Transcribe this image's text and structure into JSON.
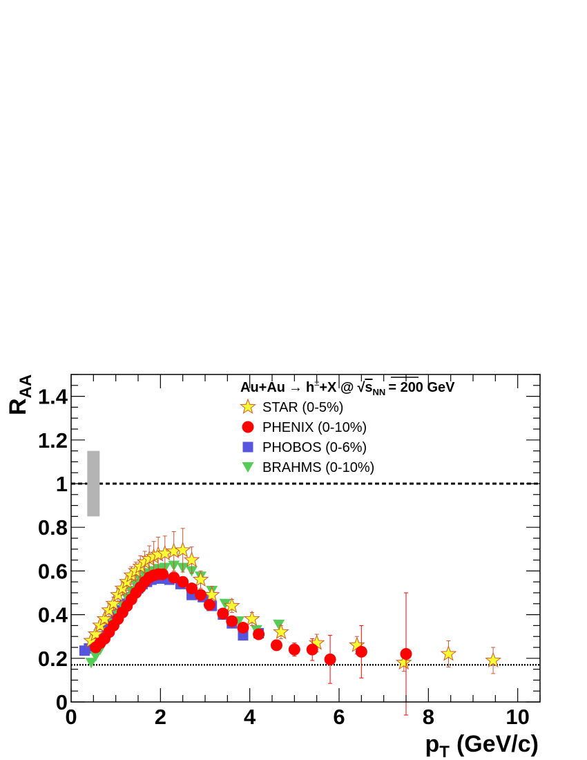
{
  "chart_data": {
    "type": "scatter",
    "title": "Au+Au",
    "title_arrow": "→",
    "title_particle": "h",
    "title_charge": "±",
    "title_rest": "+X  @",
    "title_sqrt_s": "s",
    "title_sqrt_sub": "NN",
    "title_energy": "= 200 GeV",
    "xlabel": "p",
    "xlabel_sub": "T",
    "xlabel_unit": "(GeV/c)",
    "ylabel": "R",
    "ylabel_sub": "AA",
    "xlim": [
      0,
      10.5
    ],
    "ylim": [
      0,
      1.5
    ],
    "xticks": [
      "0",
      "2",
      "4",
      "6",
      "8",
      "10"
    ],
    "yticks": [
      "0",
      "0.2",
      "0.4",
      "0.6",
      "0.8",
      "1",
      "1.2",
      "1.4"
    ],
    "xtick_values": [
      0,
      2,
      4,
      6,
      8,
      10
    ],
    "ytick_values": [
      0,
      0.2,
      0.4,
      0.6,
      0.8,
      1.0,
      1.2,
      1.4
    ],
    "grid": false,
    "legend_position": "top-right",
    "reference_lines": [
      {
        "y": 1.0,
        "style": "dashed"
      },
      {
        "y": 0.17,
        "style": "dotted"
      }
    ],
    "normalization_band": {
      "x": 0.5,
      "y_low": 0.85,
      "y_high": 1.15,
      "color": "#b4b4b4"
    },
    "series": [
      {
        "name": "STAR (0-5%)",
        "marker": "star",
        "color": "#ffff33",
        "stroke": "#cc5533",
        "points": [
          {
            "x": 0.45,
            "y": 0.28,
            "e": 0.02
          },
          {
            "x": 0.55,
            "y": 0.31,
            "e": 0.02
          },
          {
            "x": 0.65,
            "y": 0.35,
            "e": 0.02
          },
          {
            "x": 0.75,
            "y": 0.38,
            "e": 0.02
          },
          {
            "x": 0.85,
            "y": 0.42,
            "e": 0.03
          },
          {
            "x": 0.95,
            "y": 0.45,
            "e": 0.03
          },
          {
            "x": 1.05,
            "y": 0.49,
            "e": 0.03
          },
          {
            "x": 1.15,
            "y": 0.52,
            "e": 0.03
          },
          {
            "x": 1.25,
            "y": 0.55,
            "e": 0.04
          },
          {
            "x": 1.35,
            "y": 0.58,
            "e": 0.04
          },
          {
            "x": 1.45,
            "y": 0.6,
            "e": 0.04
          },
          {
            "x": 1.55,
            "y": 0.62,
            "e": 0.05
          },
          {
            "x": 1.65,
            "y": 0.64,
            "e": 0.05
          },
          {
            "x": 1.75,
            "y": 0.655,
            "e": 0.06
          },
          {
            "x": 1.85,
            "y": 0.665,
            "e": 0.07
          },
          {
            "x": 1.95,
            "y": 0.675,
            "e": 0.08
          },
          {
            "x": 2.1,
            "y": 0.68,
            "e": 0.08
          },
          {
            "x": 2.3,
            "y": 0.69,
            "e": 0.09
          },
          {
            "x": 2.5,
            "y": 0.695,
            "e": 0.1
          },
          {
            "x": 2.7,
            "y": 0.65,
            "e": 0.06
          },
          {
            "x": 2.9,
            "y": 0.56,
            "e": 0.04
          },
          {
            "x": 3.15,
            "y": 0.49,
            "e": 0.04
          },
          {
            "x": 3.6,
            "y": 0.44,
            "e": 0.03
          },
          {
            "x": 4.05,
            "y": 0.38,
            "e": 0.03
          },
          {
            "x": 4.7,
            "y": 0.32,
            "e": 0.03
          },
          {
            "x": 5.5,
            "y": 0.27,
            "e": 0.04
          },
          {
            "x": 6.4,
            "y": 0.26,
            "e": 0.04
          },
          {
            "x": 7.45,
            "y": 0.18,
            "e": 0.04
          },
          {
            "x": 8.45,
            "y": 0.22,
            "e": 0.06
          },
          {
            "x": 9.45,
            "y": 0.19,
            "e": 0.06
          }
        ]
      },
      {
        "name": "PHENIX (0-10%)",
        "marker": "circle",
        "color": "#ff0000",
        "stroke": "#ff0000",
        "points": [
          {
            "x": 0.55,
            "y": 0.25,
            "e": 0.01
          },
          {
            "x": 0.65,
            "y": 0.27,
            "e": 0.01
          },
          {
            "x": 0.75,
            "y": 0.29,
            "e": 0.01
          },
          {
            "x": 0.85,
            "y": 0.32,
            "e": 0.01
          },
          {
            "x": 0.95,
            "y": 0.35,
            "e": 0.01
          },
          {
            "x": 1.05,
            "y": 0.38,
            "e": 0.01
          },
          {
            "x": 1.15,
            "y": 0.41,
            "e": 0.01
          },
          {
            "x": 1.25,
            "y": 0.44,
            "e": 0.01
          },
          {
            "x": 1.35,
            "y": 0.47,
            "e": 0.01
          },
          {
            "x": 1.45,
            "y": 0.5,
            "e": 0.01
          },
          {
            "x": 1.55,
            "y": 0.525,
            "e": 0.01
          },
          {
            "x": 1.65,
            "y": 0.55,
            "e": 0.01
          },
          {
            "x": 1.75,
            "y": 0.57,
            "e": 0.01
          },
          {
            "x": 1.85,
            "y": 0.58,
            "e": 0.01
          },
          {
            "x": 1.95,
            "y": 0.585,
            "e": 0.01
          },
          {
            "x": 2.05,
            "y": 0.585,
            "e": 0.01
          },
          {
            "x": 2.3,
            "y": 0.57,
            "e": 0.01
          },
          {
            "x": 2.5,
            "y": 0.55,
            "e": 0.01
          },
          {
            "x": 2.7,
            "y": 0.52,
            "e": 0.01
          },
          {
            "x": 2.9,
            "y": 0.49,
            "e": 0.01
          },
          {
            "x": 3.1,
            "y": 0.445,
            "e": 0.015
          },
          {
            "x": 3.4,
            "y": 0.405,
            "e": 0.015
          },
          {
            "x": 3.6,
            "y": 0.37,
            "e": 0.015
          },
          {
            "x": 3.85,
            "y": 0.34,
            "e": 0.015
          },
          {
            "x": 4.2,
            "y": 0.31,
            "e": 0.02
          },
          {
            "x": 4.6,
            "y": 0.26,
            "e": 0.02
          },
          {
            "x": 5.0,
            "y": 0.24,
            "e": 0.03
          },
          {
            "x": 5.4,
            "y": 0.24,
            "e": 0.05
          },
          {
            "x": 5.8,
            "y": 0.195,
            "e": 0.11
          },
          {
            "x": 6.5,
            "y": 0.23,
            "e": 0.12
          },
          {
            "x": 7.5,
            "y": 0.22,
            "e": 0.28
          }
        ]
      },
      {
        "name": "PHOBOS (0-6%)",
        "marker": "square",
        "color": "#5555dd",
        "stroke": "#5555dd",
        "points": [
          {
            "x": 0.3,
            "y": 0.235
          },
          {
            "x": 0.4,
            "y": 0.245
          },
          {
            "x": 0.5,
            "y": 0.26
          },
          {
            "x": 0.6,
            "y": 0.28
          },
          {
            "x": 0.7,
            "y": 0.3
          },
          {
            "x": 0.8,
            "y": 0.33
          },
          {
            "x": 0.9,
            "y": 0.36
          },
          {
            "x": 1.0,
            "y": 0.39
          },
          {
            "x": 1.1,
            "y": 0.42
          },
          {
            "x": 1.2,
            "y": 0.45
          },
          {
            "x": 1.3,
            "y": 0.48
          },
          {
            "x": 1.4,
            "y": 0.5
          },
          {
            "x": 1.5,
            "y": 0.52
          },
          {
            "x": 1.6,
            "y": 0.54
          },
          {
            "x": 1.7,
            "y": 0.55
          },
          {
            "x": 1.8,
            "y": 0.56
          },
          {
            "x": 1.9,
            "y": 0.565
          },
          {
            "x": 2.0,
            "y": 0.565
          },
          {
            "x": 2.2,
            "y": 0.56
          },
          {
            "x": 2.45,
            "y": 0.54
          },
          {
            "x": 2.7,
            "y": 0.49
          },
          {
            "x": 2.95,
            "y": 0.48
          },
          {
            "x": 3.15,
            "y": 0.44
          },
          {
            "x": 3.4,
            "y": 0.4
          },
          {
            "x": 3.6,
            "y": 0.36
          },
          {
            "x": 3.85,
            "y": 0.305
          },
          {
            "x": 4.2,
            "y": 0.315
          }
        ]
      },
      {
        "name": "BRAHMS (0-10%)",
        "marker": "triangle-down",
        "color": "#55cc55",
        "stroke": "#55cc55",
        "points": [
          {
            "x": 0.45,
            "y": 0.18
          },
          {
            "x": 0.55,
            "y": 0.21
          },
          {
            "x": 0.65,
            "y": 0.24
          },
          {
            "x": 0.75,
            "y": 0.28
          },
          {
            "x": 0.85,
            "y": 0.32
          },
          {
            "x": 0.95,
            "y": 0.36
          },
          {
            "x": 1.05,
            "y": 0.4
          },
          {
            "x": 1.15,
            "y": 0.44
          },
          {
            "x": 1.25,
            "y": 0.48
          },
          {
            "x": 1.35,
            "y": 0.51
          },
          {
            "x": 1.45,
            "y": 0.54
          },
          {
            "x": 1.55,
            "y": 0.56
          },
          {
            "x": 1.65,
            "y": 0.58
          },
          {
            "x": 1.75,
            "y": 0.59
          },
          {
            "x": 1.85,
            "y": 0.6
          },
          {
            "x": 1.95,
            "y": 0.61
          },
          {
            "x": 2.1,
            "y": 0.615
          },
          {
            "x": 2.3,
            "y": 0.625
          },
          {
            "x": 2.5,
            "y": 0.615
          },
          {
            "x": 2.7,
            "y": 0.6
          },
          {
            "x": 2.9,
            "y": 0.575
          },
          {
            "x": 3.15,
            "y": 0.51
          },
          {
            "x": 3.45,
            "y": 0.45
          },
          {
            "x": 3.75,
            "y": 0.37
          },
          {
            "x": 4.15,
            "y": 0.33
          },
          {
            "x": 4.65,
            "y": 0.355
          }
        ]
      }
    ]
  }
}
